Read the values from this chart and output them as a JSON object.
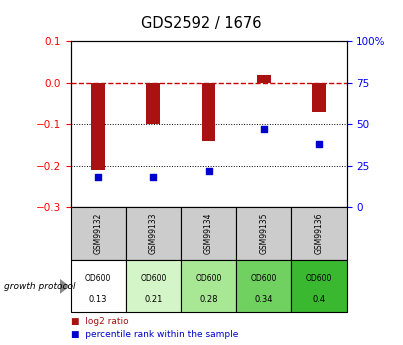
{
  "title": "GDS2592 / 1676",
  "samples": [
    "GSM99132",
    "GSM99133",
    "GSM99134",
    "GSM99135",
    "GSM99136"
  ],
  "log2_ratio": [
    -0.21,
    -0.1,
    -0.14,
    0.02,
    -0.07
  ],
  "percentile_rank": [
    18,
    18,
    22,
    47,
    38
  ],
  "od600_values": [
    "0.13",
    "0.21",
    "0.28",
    "0.34",
    "0.4"
  ],
  "left_ylim": [
    -0.3,
    0.1
  ],
  "right_ylim": [
    0,
    100
  ],
  "left_yticks": [
    -0.3,
    -0.2,
    -0.1,
    0.0,
    0.1
  ],
  "right_yticks": [
    0,
    25,
    50,
    75,
    100
  ],
  "bar_color": "#aa1111",
  "dot_color": "#0000cc",
  "zero_line_color": "#cc0000",
  "bg_color": "#ffffff",
  "header_bg": "#cccccc",
  "od_bg_colors": [
    "#ffffff",
    "#d4f5c8",
    "#a8e895",
    "#70d060",
    "#3ab830"
  ],
  "legend_bar": "log2 ratio",
  "legend_dot": "percentile rank within the sample",
  "protocol_label": "growth protocol",
  "bar_width": 0.25
}
